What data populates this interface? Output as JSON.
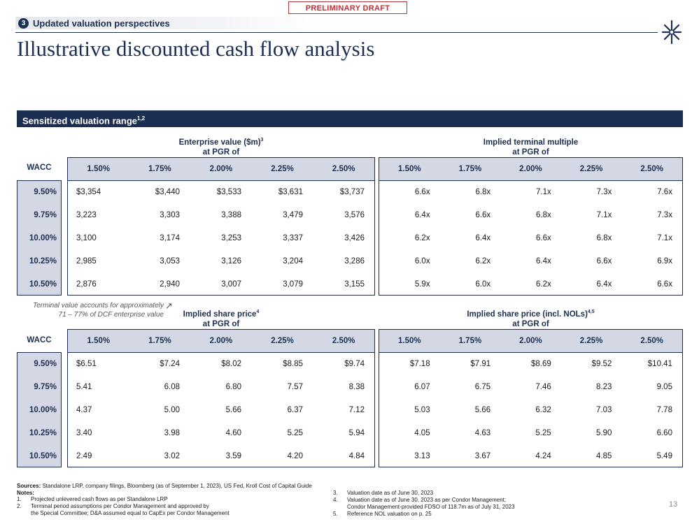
{
  "draft_label": "PRELIMINARY DRAFT",
  "section": {
    "number": "3",
    "title": "Updated valuation perspectives"
  },
  "title": "Illustrative discounted cash flow analysis",
  "range_bar": {
    "label": "Sensitized valuation range",
    "sup": "1,2"
  },
  "wacc_label": "WACC",
  "pgr_headers": [
    "1.50%",
    "1.75%",
    "2.00%",
    "2.25%",
    "2.50%"
  ],
  "wacc_rows": [
    "9.50%",
    "9.75%",
    "10.00%",
    "10.25%",
    "10.50%"
  ],
  "tables": {
    "ev": {
      "title": "Enterprise value ($m)",
      "sup": "3",
      "subtitle": "at PGR of",
      "rows": [
        [
          "$3,354",
          "$3,440",
          "$3,533",
          "$3,631",
          "$3,737"
        ],
        [
          "3,223",
          "3,303",
          "3,388",
          "3,479",
          "3,576"
        ],
        [
          "3,100",
          "3,174",
          "3,253",
          "3,337",
          "3,426"
        ],
        [
          "2,985",
          "3,053",
          "3,126",
          "3,204",
          "3,286"
        ],
        [
          "2,876",
          "2,940",
          "3,007",
          "3,079",
          "3,155"
        ]
      ]
    },
    "multiple": {
      "title": "Implied terminal multiple",
      "sup": "",
      "subtitle": "at PGR of",
      "rows": [
        [
          "6.6x",
          "6.8x",
          "7.1x",
          "7.3x",
          "7.6x"
        ],
        [
          "6.4x",
          "6.6x",
          "6.8x",
          "7.1x",
          "7.3x"
        ],
        [
          "6.2x",
          "6.4x",
          "6.6x",
          "6.8x",
          "7.1x"
        ],
        [
          "6.0x",
          "6.2x",
          "6.4x",
          "6.6x",
          "6.9x"
        ],
        [
          "5.9x",
          "6.0x",
          "6.2x",
          "6.4x",
          "6.6x"
        ]
      ]
    },
    "price": {
      "title": "Implied share price",
      "sup": "4",
      "subtitle": "at PGR of",
      "rows": [
        [
          "$6.51",
          "$7.24",
          "$8.02",
          "$8.85",
          "$9.74"
        ],
        [
          "5.41",
          "6.08",
          "6.80",
          "7.57",
          "8.38"
        ],
        [
          "4.37",
          "5.00",
          "5.66",
          "6.37",
          "7.12"
        ],
        [
          "3.40",
          "3.98",
          "4.60",
          "5.25",
          "5.94"
        ],
        [
          "2.49",
          "3.02",
          "3.59",
          "4.20",
          "4.84"
        ]
      ]
    },
    "price_nol": {
      "title": "Implied share price (incl. NOLs)",
      "sup": "4,5",
      "subtitle": "at PGR of",
      "rows": [
        [
          "$7.18",
          "$7.91",
          "$8.69",
          "$9.52",
          "$10.41"
        ],
        [
          "6.07",
          "6.75",
          "7.46",
          "8.23",
          "9.05"
        ],
        [
          "5.03",
          "5.66",
          "6.32",
          "7.03",
          "7.78"
        ],
        [
          "4.05",
          "4.63",
          "5.25",
          "5.90",
          "6.60"
        ],
        [
          "3.13",
          "3.67",
          "4.24",
          "4.85",
          "5.49"
        ]
      ]
    }
  },
  "tv_note": {
    "line1": "Terminal value accounts for approximately",
    "line2": "71 – 77% of DCF enterprise value"
  },
  "sources": {
    "label": "Sources:",
    "text": "Standalone LRP, company filings, Bloomberg (as of September 1, 2023), US Fed, Kroll Cost of Capital Guide"
  },
  "notes_label": "Notes:",
  "notes_left": [
    {
      "n": "1.",
      "lines": [
        "Projected unlevered cash flows as per Standalone LRP"
      ]
    },
    {
      "n": "2.",
      "lines": [
        "Terminal period assumptions per Condor Management and approved by",
        "the Special Committee; D&A assumed equal to CapEx per Condor Management"
      ]
    }
  ],
  "notes_right": [
    {
      "n": "3.",
      "lines": [
        "Valuation date as of June 30, 2023"
      ]
    },
    {
      "n": "4.",
      "lines": [
        "Valuation date as of June 30, 2023 as per Condor Management;",
        "Condor Management-provided FDSO of 118.7m as of July 31, 2023"
      ]
    },
    {
      "n": "5.",
      "lines": [
        "Reference NOL valuation on p. 25"
      ]
    }
  ],
  "page_number": "13",
  "colors": {
    "navy": "#1c2f52",
    "header_fill": "#d3d8e4",
    "draft_red": "#b8333a"
  }
}
